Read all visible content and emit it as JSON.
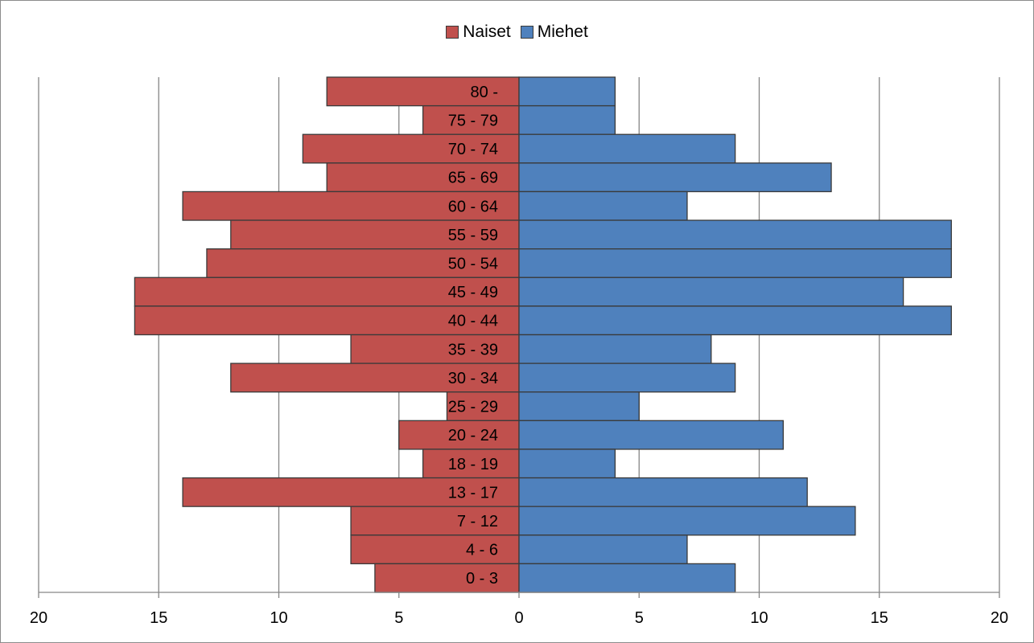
{
  "chart_data": {
    "type": "bar",
    "orientation": "horizontal",
    "layout": "population-pyramid",
    "categories": [
      "80 -",
      "75 - 79",
      "70 - 74",
      "65 - 69",
      "60 - 64",
      "55 - 59",
      "50 - 54",
      "45 - 49",
      "40 - 44",
      "35 - 39",
      "30 - 34",
      "25 - 29",
      "20 - 24",
      "18 - 19",
      "13 - 17",
      "7 - 12",
      "4 - 6",
      "0 - 3"
    ],
    "series": [
      {
        "name": "Naiset",
        "color": "#c0504d",
        "direction": "left",
        "values": [
          8,
          4,
          9,
          8,
          14,
          12,
          13,
          16,
          16,
          7,
          12,
          3,
          5,
          4,
          14,
          7,
          7,
          6
        ]
      },
      {
        "name": "Miehet",
        "color": "#4f81bd",
        "direction": "right",
        "values": [
          4,
          4,
          9,
          13,
          7,
          18,
          18,
          16,
          18,
          8,
          9,
          5,
          11,
          4,
          12,
          14,
          7,
          9
        ]
      }
    ],
    "x_ticks": [
      20,
      15,
      10,
      5,
      0,
      5,
      10,
      15,
      20
    ],
    "xlim": [
      -20,
      20
    ],
    "grid": true,
    "legend_position": "top-center",
    "title": "",
    "xlabel": "",
    "ylabel": ""
  }
}
